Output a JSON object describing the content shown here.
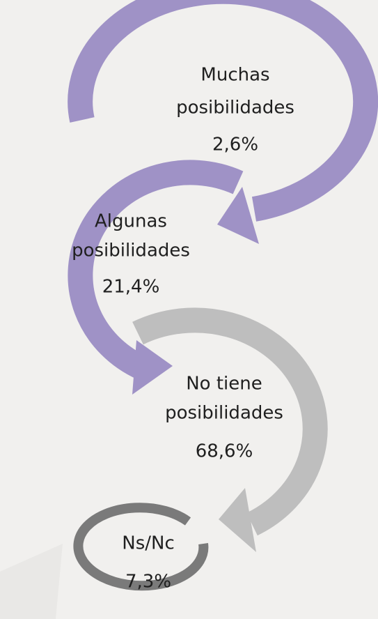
{
  "nodes": [
    {
      "label": [
        "Muchas",
        "posibilidades"
      ],
      "value": "2,6%"
    },
    {
      "label": [
        "Algunas",
        "posibilidades"
      ],
      "value": "21,4%"
    },
    {
      "label": [
        "No tiene",
        "posibilidades"
      ],
      "value": "68,6%"
    },
    {
      "label": [
        "Ns/Nc"
      ],
      "value": "7,3%"
    }
  ]
}
